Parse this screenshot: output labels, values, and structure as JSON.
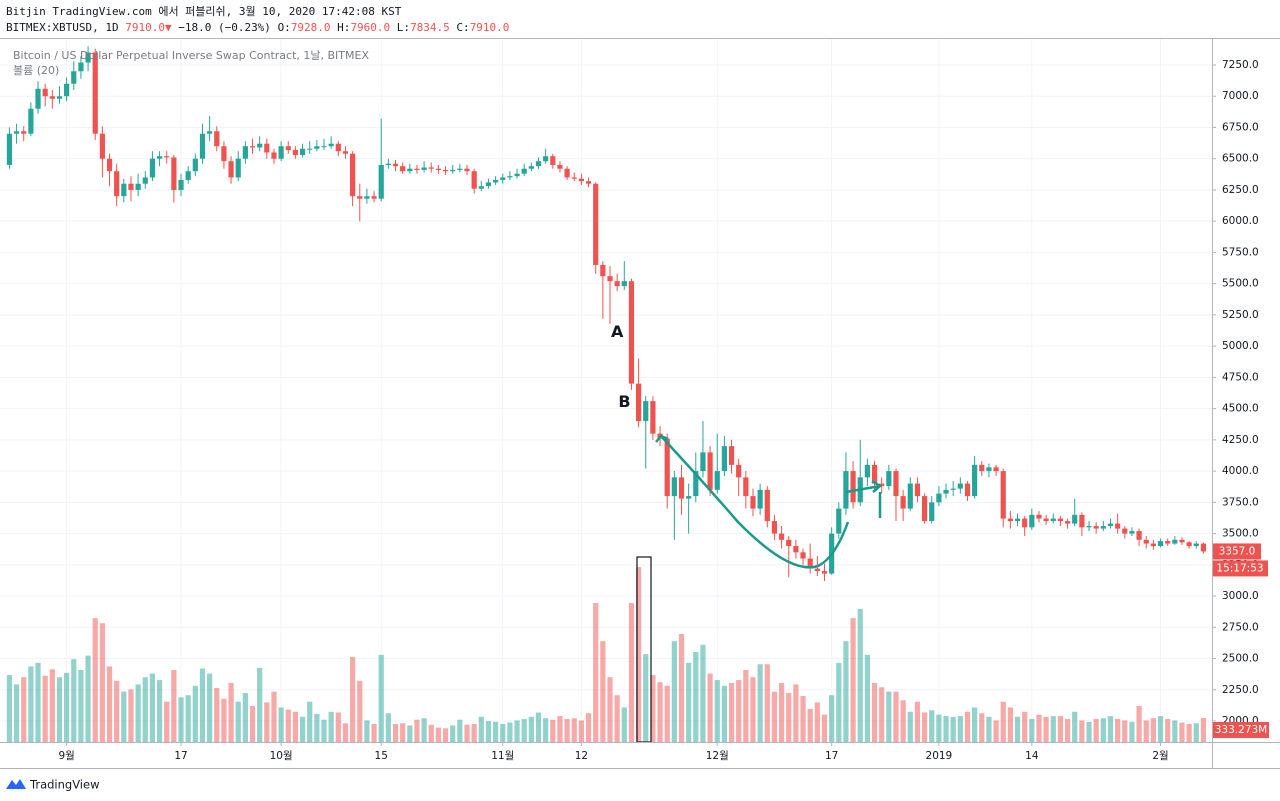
{
  "header": {
    "line1": "Bitjin TradingView.com 에서 퍼블리쉬, 3월 10, 2020 17:42:08 KST",
    "line2": [
      "BITMEX:XBTUSD, 1D ",
      "7910.0",
      "▼",
      " −18.0 (−0.23%) ",
      "O:",
      "7928.0",
      " H:",
      "7960.0",
      " L:",
      "7834.5",
      " C:",
      "7910.0"
    ]
  },
  "footer": {
    "brand": "TradingView"
  },
  "chart_data": {
    "type": "candlestick",
    "legend": "Bitcoin / US Dollar Perpetual Inverse Swap Contract, 1날, BITMEX",
    "volume_legend": "볼륨 (20)",
    "annotations": [
      {
        "text": "A",
        "index": 87
      },
      {
        "text": "B",
        "index": 88
      }
    ],
    "up_color": "#26a69a",
    "down_color": "#ef5350",
    "grid": true,
    "xlim": [
      -0.2,
      168.2
    ],
    "xticks": [
      {
        "value": 8,
        "label": "9월"
      },
      {
        "value": 24,
        "label": "17"
      },
      {
        "value": 38,
        "label": "10월"
      },
      {
        "value": 52,
        "label": "15"
      },
      {
        "value": 69,
        "label": "11월"
      },
      {
        "value": 80,
        "label": "12"
      },
      {
        "value": 99,
        "label": "12월"
      },
      {
        "value": 115,
        "label": "17"
      },
      {
        "value": 130,
        "label": "2019"
      },
      {
        "value": 143,
        "label": "14"
      },
      {
        "value": 161,
        "label": "2월"
      }
    ],
    "ylim": [
      1832,
      7466
    ],
    "yticks": [
      {
        "value": 2000,
        "label": "2000.0"
      },
      {
        "value": 2250,
        "label": "2250.0"
      },
      {
        "value": 2500,
        "label": "2500.0"
      },
      {
        "value": 2750,
        "label": "2750.0"
      },
      {
        "value": 3000,
        "label": "3000.0"
      },
      {
        "value": 3250,
        "label": "3250.0"
      },
      {
        "value": 3500,
        "label": "3500.0"
      },
      {
        "value": 3750,
        "label": "3750.0"
      },
      {
        "value": 4000,
        "label": "4000.0"
      },
      {
        "value": 4250,
        "label": "4250.0"
      },
      {
        "value": 4500,
        "label": "4500.0"
      },
      {
        "value": 4750,
        "label": "4750.0"
      },
      {
        "value": 5000,
        "label": "5000.0"
      },
      {
        "value": 5250,
        "label": "5250.0"
      },
      {
        "value": 5500,
        "label": "5500.0"
      },
      {
        "value": 5750,
        "label": "5750.0"
      },
      {
        "value": 6000,
        "label": "6000.0"
      },
      {
        "value": 6250,
        "label": "6250.0"
      },
      {
        "value": 6500,
        "label": "6500.0"
      },
      {
        "value": 6750,
        "label": "6750.0"
      },
      {
        "value": 7000,
        "label": "7000.0"
      },
      {
        "value": 7250,
        "label": "7250.0"
      }
    ],
    "volume_lim": [
      0,
      2500
    ],
    "last_price": {
      "value": 3357,
      "label": "3357.0"
    },
    "countdown": "15:17:53",
    "last_volume": {
      "value": 333.273,
      "label": "333.273M"
    },
    "candles": [
      [
        6450,
        6750,
        6420,
        6700
      ],
      [
        6700,
        6780,
        6620,
        6720
      ],
      [
        6720,
        6760,
        6640,
        6700
      ],
      [
        6700,
        6950,
        6680,
        6900
      ],
      [
        6900,
        7120,
        6860,
        7060
      ],
      [
        7060,
        7100,
        6920,
        7000
      ],
      [
        7000,
        7050,
        6900,
        6980
      ],
      [
        6980,
        7080,
        6940,
        7000
      ],
      [
        7000,
        7150,
        6960,
        7100
      ],
      [
        7100,
        7280,
        7050,
        7200
      ],
      [
        7200,
        7320,
        7140,
        7270
      ],
      [
        7270,
        7400,
        7200,
        7350
      ],
      [
        7350,
        7380,
        6650,
        6700
      ],
      [
        6700,
        6760,
        6350,
        6500
      ],
      [
        6500,
        6540,
        6280,
        6400
      ],
      [
        6400,
        6460,
        6120,
        6200
      ],
      [
        6200,
        6340,
        6150,
        6300
      ],
      [
        6300,
        6360,
        6160,
        6250
      ],
      [
        6250,
        6380,
        6200,
        6300
      ],
      [
        6300,
        6400,
        6260,
        6350
      ],
      [
        6350,
        6560,
        6320,
        6500
      ],
      [
        6500,
        6560,
        6440,
        6520
      ],
      [
        6520,
        6560,
        6460,
        6510
      ],
      [
        6510,
        6530,
        6150,
        6250
      ],
      [
        6250,
        6380,
        6200,
        6330
      ],
      [
        6330,
        6440,
        6300,
        6400
      ],
      [
        6400,
        6540,
        6360,
        6500
      ],
      [
        6500,
        6780,
        6460,
        6700
      ],
      [
        6700,
        6840,
        6640,
        6720
      ],
      [
        6720,
        6760,
        6560,
        6600
      ],
      [
        6600,
        6640,
        6420,
        6480
      ],
      [
        6480,
        6520,
        6300,
        6350
      ],
      [
        6350,
        6560,
        6320,
        6500
      ],
      [
        6500,
        6640,
        6460,
        6600
      ],
      [
        6600,
        6660,
        6540,
        6590
      ],
      [
        6590,
        6680,
        6560,
        6620
      ],
      [
        6620,
        6660,
        6500,
        6550
      ],
      [
        6550,
        6580,
        6460,
        6500
      ],
      [
        6500,
        6640,
        6480,
        6600
      ],
      [
        6600,
        6640,
        6540,
        6570
      ],
      [
        6570,
        6600,
        6500,
        6530
      ],
      [
        6530,
        6620,
        6510,
        6580
      ],
      [
        6580,
        6640,
        6540,
        6580
      ],
      [
        6580,
        6650,
        6560,
        6600
      ],
      [
        6600,
        6660,
        6570,
        6600
      ],
      [
        6600,
        6680,
        6580,
        6620
      ],
      [
        6620,
        6640,
        6520,
        6560
      ],
      [
        6560,
        6600,
        6500,
        6540
      ],
      [
        6540,
        6560,
        6120,
        6200
      ],
      [
        6200,
        6300,
        6000,
        6180
      ],
      [
        6180,
        6260,
        6140,
        6200
      ],
      [
        6200,
        6240,
        6150,
        6180
      ],
      [
        6180,
        6820,
        6160,
        6450
      ],
      [
        6450,
        6500,
        6420,
        6460
      ],
      [
        6460,
        6490,
        6400,
        6440
      ],
      [
        6440,
        6470,
        6380,
        6400
      ],
      [
        6400,
        6460,
        6380,
        6420
      ],
      [
        6420,
        6450,
        6380,
        6410
      ],
      [
        6410,
        6480,
        6390,
        6430
      ],
      [
        6430,
        6470,
        6390,
        6420
      ],
      [
        6420,
        6450,
        6380,
        6410
      ],
      [
        6410,
        6440,
        6370,
        6400
      ],
      [
        6400,
        6450,
        6380,
        6410
      ],
      [
        6410,
        6460,
        6390,
        6420
      ],
      [
        6420,
        6450,
        6370,
        6400
      ],
      [
        6400,
        6420,
        6220,
        6260
      ],
      [
        6260,
        6320,
        6240,
        6280
      ],
      [
        6280,
        6340,
        6260,
        6310
      ],
      [
        6310,
        6360,
        6290,
        6330
      ],
      [
        6330,
        6380,
        6300,
        6350
      ],
      [
        6350,
        6400,
        6330,
        6360
      ],
      [
        6360,
        6420,
        6340,
        6380
      ],
      [
        6380,
        6460,
        6360,
        6420
      ],
      [
        6420,
        6470,
        6400,
        6440
      ],
      [
        6440,
        6510,
        6420,
        6480
      ],
      [
        6480,
        6580,
        6460,
        6520
      ],
      [
        6520,
        6540,
        6420,
        6450
      ],
      [
        6450,
        6480,
        6390,
        6420
      ],
      [
        6420,
        6440,
        6330,
        6350
      ],
      [
        6350,
        6390,
        6320,
        6340
      ],
      [
        6340,
        6380,
        6290,
        6320
      ],
      [
        6320,
        6350,
        6270,
        6300
      ],
      [
        6300,
        6310,
        5580,
        5650
      ],
      [
        5650,
        5680,
        5220,
        5560
      ],
      [
        5560,
        5640,
        5180,
        5520
      ],
      [
        5520,
        5580,
        5440,
        5480
      ],
      [
        5480,
        5680,
        5450,
        5520
      ],
      [
        5520,
        5540,
        4650,
        4700
      ],
      [
        4700,
        4900,
        4350,
        4400
      ],
      [
        4400,
        4600,
        4020,
        4560
      ],
      [
        4560,
        4600,
        4250,
        4300
      ],
      [
        4300,
        4360,
        4200,
        4260
      ],
      [
        4260,
        4300,
        3700,
        3800
      ],
      [
        3800,
        4000,
        3450,
        3950
      ],
      [
        3950,
        4050,
        3650,
        3780
      ],
      [
        3780,
        3900,
        3500,
        3800
      ],
      [
        3800,
        4150,
        3750,
        4000
      ],
      [
        4000,
        4400,
        3950,
        4150
      ],
      [
        4150,
        4200,
        3800,
        3850
      ],
      [
        3850,
        4300,
        3820,
        4000
      ],
      [
        4000,
        4280,
        3960,
        4200
      ],
      [
        4200,
        4250,
        3980,
        4050
      ],
      [
        4050,
        4100,
        3800,
        3950
      ],
      [
        3950,
        4000,
        3700,
        3800
      ],
      [
        3800,
        3860,
        3640,
        3700
      ],
      [
        3700,
        3900,
        3650,
        3850
      ],
      [
        3850,
        3880,
        3550,
        3600
      ],
      [
        3600,
        3650,
        3450,
        3500
      ],
      [
        3500,
        3560,
        3380,
        3450
      ],
      [
        3450,
        3480,
        3150,
        3400
      ],
      [
        3400,
        3450,
        3300,
        3350
      ],
      [
        3350,
        3380,
        3250,
        3300
      ],
      [
        3300,
        3420,
        3180,
        3220
      ],
      [
        3220,
        3320,
        3160,
        3200
      ],
      [
        3200,
        3260,
        3120,
        3180
      ],
      [
        3180,
        3550,
        3170,
        3500
      ],
      [
        3500,
        3750,
        3460,
        3700
      ],
      [
        3700,
        4150,
        3650,
        4000
      ],
      [
        4000,
        4080,
        3700,
        3750
      ],
      [
        3750,
        4250,
        3720,
        3950
      ],
      [
        3950,
        4100,
        3880,
        4050
      ],
      [
        4050,
        4080,
        3850,
        3900
      ],
      [
        3900,
        3950,
        3820,
        3880
      ],
      [
        3880,
        4050,
        3850,
        4000
      ],
      [
        4000,
        4020,
        3600,
        3800
      ],
      [
        3800,
        3850,
        3600,
        3700
      ],
      [
        3700,
        3950,
        3680,
        3900
      ],
      [
        3900,
        3950,
        3750,
        3800
      ],
      [
        3800,
        3820,
        3580,
        3600
      ],
      [
        3600,
        3800,
        3580,
        3750
      ],
      [
        3750,
        3880,
        3720,
        3820
      ],
      [
        3820,
        3900,
        3780,
        3850
      ],
      [
        3850,
        3920,
        3800,
        3860
      ],
      [
        3860,
        3950,
        3820,
        3900
      ],
      [
        3900,
        3920,
        3760,
        3800
      ],
      [
        3800,
        4120,
        3780,
        4050
      ],
      [
        4050,
        4080,
        3960,
        4000
      ],
      [
        4000,
        4060,
        3950,
        4030
      ],
      [
        4030,
        4050,
        3960,
        4000
      ],
      [
        4000,
        4020,
        3550,
        3620
      ],
      [
        3620,
        3680,
        3540,
        3600
      ],
      [
        3600,
        3660,
        3560,
        3620
      ],
      [
        3620,
        3640,
        3480,
        3550
      ],
      [
        3550,
        3700,
        3530,
        3650
      ],
      [
        3650,
        3680,
        3590,
        3620
      ],
      [
        3620,
        3650,
        3570,
        3600
      ],
      [
        3600,
        3660,
        3580,
        3620
      ],
      [
        3620,
        3640,
        3560,
        3600
      ],
      [
        3600,
        3620,
        3540,
        3580
      ],
      [
        3580,
        3780,
        3560,
        3650
      ],
      [
        3650,
        3670,
        3480,
        3550
      ],
      [
        3550,
        3600,
        3520,
        3560
      ],
      [
        3560,
        3590,
        3500,
        3540
      ],
      [
        3540,
        3600,
        3520,
        3560
      ],
      [
        3560,
        3620,
        3540,
        3580
      ],
      [
        3580,
        3660,
        3500,
        3540
      ],
      [
        3540,
        3560,
        3460,
        3500
      ],
      [
        3500,
        3550,
        3480,
        3520
      ],
      [
        3520,
        3540,
        3400,
        3450
      ],
      [
        3450,
        3480,
        3380,
        3420
      ],
      [
        3420,
        3450,
        3370,
        3400
      ],
      [
        3400,
        3460,
        3390,
        3440
      ],
      [
        3440,
        3460,
        3400,
        3420
      ],
      [
        3420,
        3480,
        3410,
        3450
      ],
      [
        3450,
        3470,
        3410,
        3430
      ],
      [
        3430,
        3440,
        3380,
        3400
      ],
      [
        3400,
        3440,
        3380,
        3420
      ],
      [
        3420,
        3430,
        3340,
        3357
      ]
    ],
    "volume": [
      930,
      800,
      900,
      1050,
      1100,
      920,
      1010,
      900,
      960,
      1150,
      1000,
      1200,
      1720,
      1650,
      1050,
      850,
      700,
      730,
      800,
      900,
      950,
      860,
      560,
      1000,
      620,
      650,
      780,
      1020,
      950,
      750,
      600,
      820,
      560,
      680,
      500,
      1030,
      550,
      700,
      480,
      450,
      420,
      350,
      560,
      390,
      310,
      420,
      410,
      260,
      1180,
      850,
      300,
      250,
      1210,
      400,
      250,
      260,
      230,
      310,
      330,
      240,
      200,
      190,
      230,
      310,
      240,
      250,
      350,
      290,
      280,
      250,
      270,
      300,
      320,
      350,
      410,
      330,
      310,
      360,
      320,
      330,
      300,
      400,
      1930,
      1400,
      900,
      650,
      480,
      1930,
      2430,
      1220,
      930,
      830,
      780,
      1400,
      1500,
      1100,
      1250,
      1350,
      950,
      860,
      780,
      820,
      860,
      1000,
      900,
      1080,
      1080,
      700,
      820,
      680,
      800,
      640,
      460,
      550,
      380,
      650,
      1100,
      1400,
      1720,
      1850,
      1210,
      820,
      760,
      700,
      700,
      580,
      420,
      560,
      410,
      440,
      380,
      360,
      350,
      360,
      420,
      480,
      400,
      350,
      300,
      560,
      480,
      350,
      420,
      320,
      380,
      350,
      360,
      360,
      320,
      420,
      300,
      280,
      320,
      330,
      360,
      320,
      300,
      280,
      500,
      300,
      330,
      360,
      320,
      300,
      270,
      250,
      260,
      333.273
    ]
  }
}
